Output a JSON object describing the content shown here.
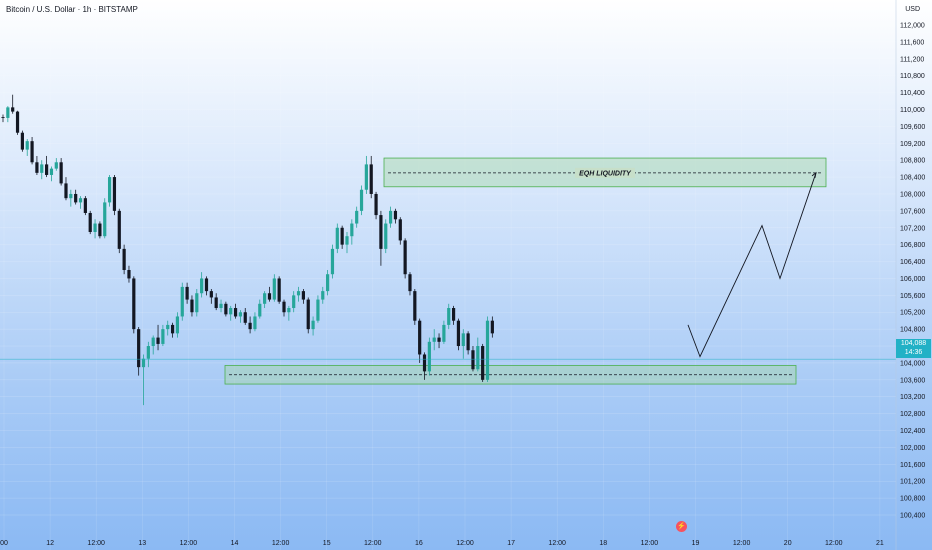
{
  "header": {
    "symbol_title": "Bitcoin / U.S. Dollar · 1h · BITSTAMP",
    "currency": "USD"
  },
  "price_tag": {
    "price": "104,088",
    "countdown": "14:36"
  },
  "icons": {
    "alert": "lightning-alert-icon"
  },
  "colors": {
    "up": "#26a69a",
    "down": "#131722",
    "zone_fill": "#a5d6a7",
    "zone_border": "#4caf50",
    "current_price": "#22b1c6",
    "projection": "#131722"
  },
  "chart_data": {
    "type": "candlestick",
    "y_axis": {
      "min": 100400,
      "max": 112000,
      "step": 400,
      "ticks": [
        "112,000",
        "111,600",
        "111,200",
        "110,800",
        "110,400",
        "110,000",
        "109,600",
        "109,200",
        "108,800",
        "108,400",
        "108,000",
        "107,600",
        "107,200",
        "106,800",
        "106,400",
        "106,000",
        "105,600",
        "105,200",
        "104,800",
        "104,400",
        "104,000",
        "103,600",
        "103,200",
        "102,800",
        "102,400",
        "102,000",
        "101,600",
        "101,200",
        "100,800",
        "100,400"
      ]
    },
    "x_axis": {
      "ticks": [
        "00",
        "12",
        "12:00",
        "13",
        "12:00",
        "14",
        "12:00",
        "15",
        "12:00",
        "16",
        "12:00",
        "17",
        "12:00",
        "18",
        "12:00",
        "19",
        "12:00",
        "20",
        "12:00",
        "21"
      ]
    },
    "current_price": 104088,
    "zones": [
      {
        "label": "EQH LIQUIDITY",
        "top": 108850,
        "bottom": 108170,
        "level": 108500
      },
      {
        "label": "",
        "top": 103940,
        "bottom": 103500,
        "level": 103720
      }
    ],
    "projection": [
      {
        "t": 0,
        "price": 104150
      },
      {
        "t": 1,
        "price": 107250
      },
      {
        "t": 2,
        "price": 106000
      },
      {
        "t": 3,
        "price": 108500
      }
    ],
    "candles": [
      [
        109820,
        109880,
        109700,
        109800
      ],
      [
        109800,
        110080,
        109700,
        110050
      ],
      [
        110050,
        110350,
        109900,
        109950
      ],
      [
        109950,
        109970,
        109400,
        109450
      ],
      [
        109450,
        109500,
        109000,
        109050
      ],
      [
        109050,
        109300,
        108900,
        109250
      ],
      [
        109250,
        109350,
        108700,
        108750
      ],
      [
        108750,
        108900,
        108450,
        108500
      ],
      [
        108500,
        108800,
        108350,
        108700
      ],
      [
        108700,
        108900,
        108400,
        108450
      ],
      [
        108450,
        108650,
        108300,
        108600
      ],
      [
        108600,
        108850,
        108550,
        108750
      ],
      [
        108750,
        108850,
        108200,
        108250
      ],
      [
        108250,
        108400,
        107850,
        107900
      ],
      [
        107900,
        108100,
        107700,
        108000
      ],
      [
        108000,
        108100,
        107750,
        107800
      ],
      [
        107800,
        107950,
        107650,
        107900
      ],
      [
        107900,
        107950,
        107500,
        107550
      ],
      [
        107550,
        107600,
        107050,
        107100
      ],
      [
        107100,
        107400,
        106950,
        107300
      ],
      [
        107300,
        107350,
        106950,
        107000
      ],
      [
        107000,
        107900,
        106950,
        107800
      ],
      [
        107800,
        108450,
        107700,
        108400
      ],
      [
        108400,
        108450,
        107500,
        107600
      ],
      [
        107600,
        107650,
        106600,
        106700
      ],
      [
        106700,
        106800,
        106100,
        106200
      ],
      [
        106200,
        106300,
        105900,
        106000
      ],
      [
        106000,
        106050,
        104700,
        104800
      ],
      [
        104800,
        104850,
        103700,
        103900
      ],
      [
        103900,
        104200,
        103000,
        104100
      ],
      [
        104100,
        104500,
        103900,
        104400
      ],
      [
        104400,
        104650,
        104200,
        104600
      ],
      [
        104600,
        104900,
        104300,
        104450
      ],
      [
        104450,
        104900,
        104400,
        104800
      ],
      [
        104800,
        105000,
        104650,
        104900
      ],
      [
        104900,
        104950,
        104600,
        104700
      ],
      [
        104700,
        105200,
        104600,
        105100
      ],
      [
        105100,
        105900,
        105000,
        105800
      ],
      [
        105800,
        105900,
        105400,
        105500
      ],
      [
        105500,
        105600,
        105100,
        105200
      ],
      [
        105200,
        105750,
        105100,
        105650
      ],
      [
        105650,
        106150,
        105550,
        106000
      ],
      [
        106000,
        106050,
        105600,
        105700
      ],
      [
        105700,
        105750,
        105400,
        105550
      ],
      [
        105550,
        105650,
        105250,
        105300
      ],
      [
        105300,
        105500,
        105200,
        105400
      ],
      [
        105400,
        105450,
        105100,
        105150
      ],
      [
        105150,
        105350,
        105000,
        105300
      ],
      [
        105300,
        105400,
        105050,
        105100
      ],
      [
        105100,
        105250,
        104950,
        105200
      ],
      [
        105200,
        105300,
        104900,
        104950
      ],
      [
        104950,
        105100,
        104700,
        104800
      ],
      [
        104800,
        105200,
        104750,
        105100
      ],
      [
        105100,
        105500,
        105050,
        105400
      ],
      [
        105400,
        105700,
        105300,
        105650
      ],
      [
        105650,
        105800,
        105450,
        105500
      ],
      [
        105500,
        106100,
        105450,
        106000
      ],
      [
        106000,
        106050,
        105400,
        105450
      ],
      [
        105450,
        105500,
        105100,
        105200
      ],
      [
        105200,
        105350,
        105000,
        105300
      ],
      [
        105300,
        105700,
        105200,
        105600
      ],
      [
        105600,
        105800,
        105450,
        105700
      ],
      [
        105700,
        105750,
        105400,
        105500
      ],
      [
        105500,
        105550,
        104700,
        104800
      ],
      [
        104800,
        105100,
        104650,
        105000
      ],
      [
        105000,
        105600,
        104950,
        105500
      ],
      [
        105500,
        105800,
        105400,
        105700
      ],
      [
        105700,
        106200,
        105600,
        106100
      ],
      [
        106100,
        106800,
        106000,
        106700
      ],
      [
        106700,
        107300,
        106600,
        107200
      ],
      [
        107200,
        107250,
        106700,
        106800
      ],
      [
        106800,
        107100,
        106600,
        107000
      ],
      [
        107000,
        107400,
        106800,
        107300
      ],
      [
        107300,
        107700,
        107200,
        107600
      ],
      [
        107600,
        108200,
        107500,
        108100
      ],
      [
        108100,
        108900,
        108000,
        108700
      ],
      [
        108700,
        108900,
        107900,
        108000
      ],
      [
        108000,
        108050,
        107400,
        107500
      ],
      [
        107500,
        107600,
        106300,
        106700
      ],
      [
        106700,
        107400,
        106600,
        107300
      ],
      [
        107300,
        107700,
        107200,
        107600
      ],
      [
        107600,
        107650,
        107300,
        107400
      ],
      [
        107400,
        107450,
        106800,
        106900
      ],
      [
        106900,
        106950,
        106000,
        106100
      ],
      [
        106100,
        106150,
        105600,
        105700
      ],
      [
        105700,
        105750,
        104900,
        105000
      ],
      [
        105000,
        105050,
        104000,
        104200
      ],
      [
        104200,
        104250,
        103600,
        103800
      ],
      [
        103800,
        104600,
        103700,
        104500
      ],
      [
        104500,
        104800,
        104300,
        104600
      ],
      [
        104600,
        104700,
        104350,
        104500
      ],
      [
        104500,
        105000,
        104450,
        104900
      ],
      [
        104900,
        105400,
        104800,
        105300
      ],
      [
        105300,
        105350,
        104900,
        105000
      ],
      [
        105000,
        105050,
        104300,
        104400
      ],
      [
        104400,
        104800,
        104100,
        104700
      ],
      [
        104700,
        104750,
        104200,
        104300
      ],
      [
        104300,
        104400,
        103800,
        103850
      ],
      [
        103850,
        104600,
        103800,
        104400
      ],
      [
        104400,
        104450,
        103550,
        103600
      ],
      [
        103600,
        105100,
        103550,
        105000
      ],
      [
        105000,
        105100,
        104600,
        104700
      ]
    ]
  }
}
